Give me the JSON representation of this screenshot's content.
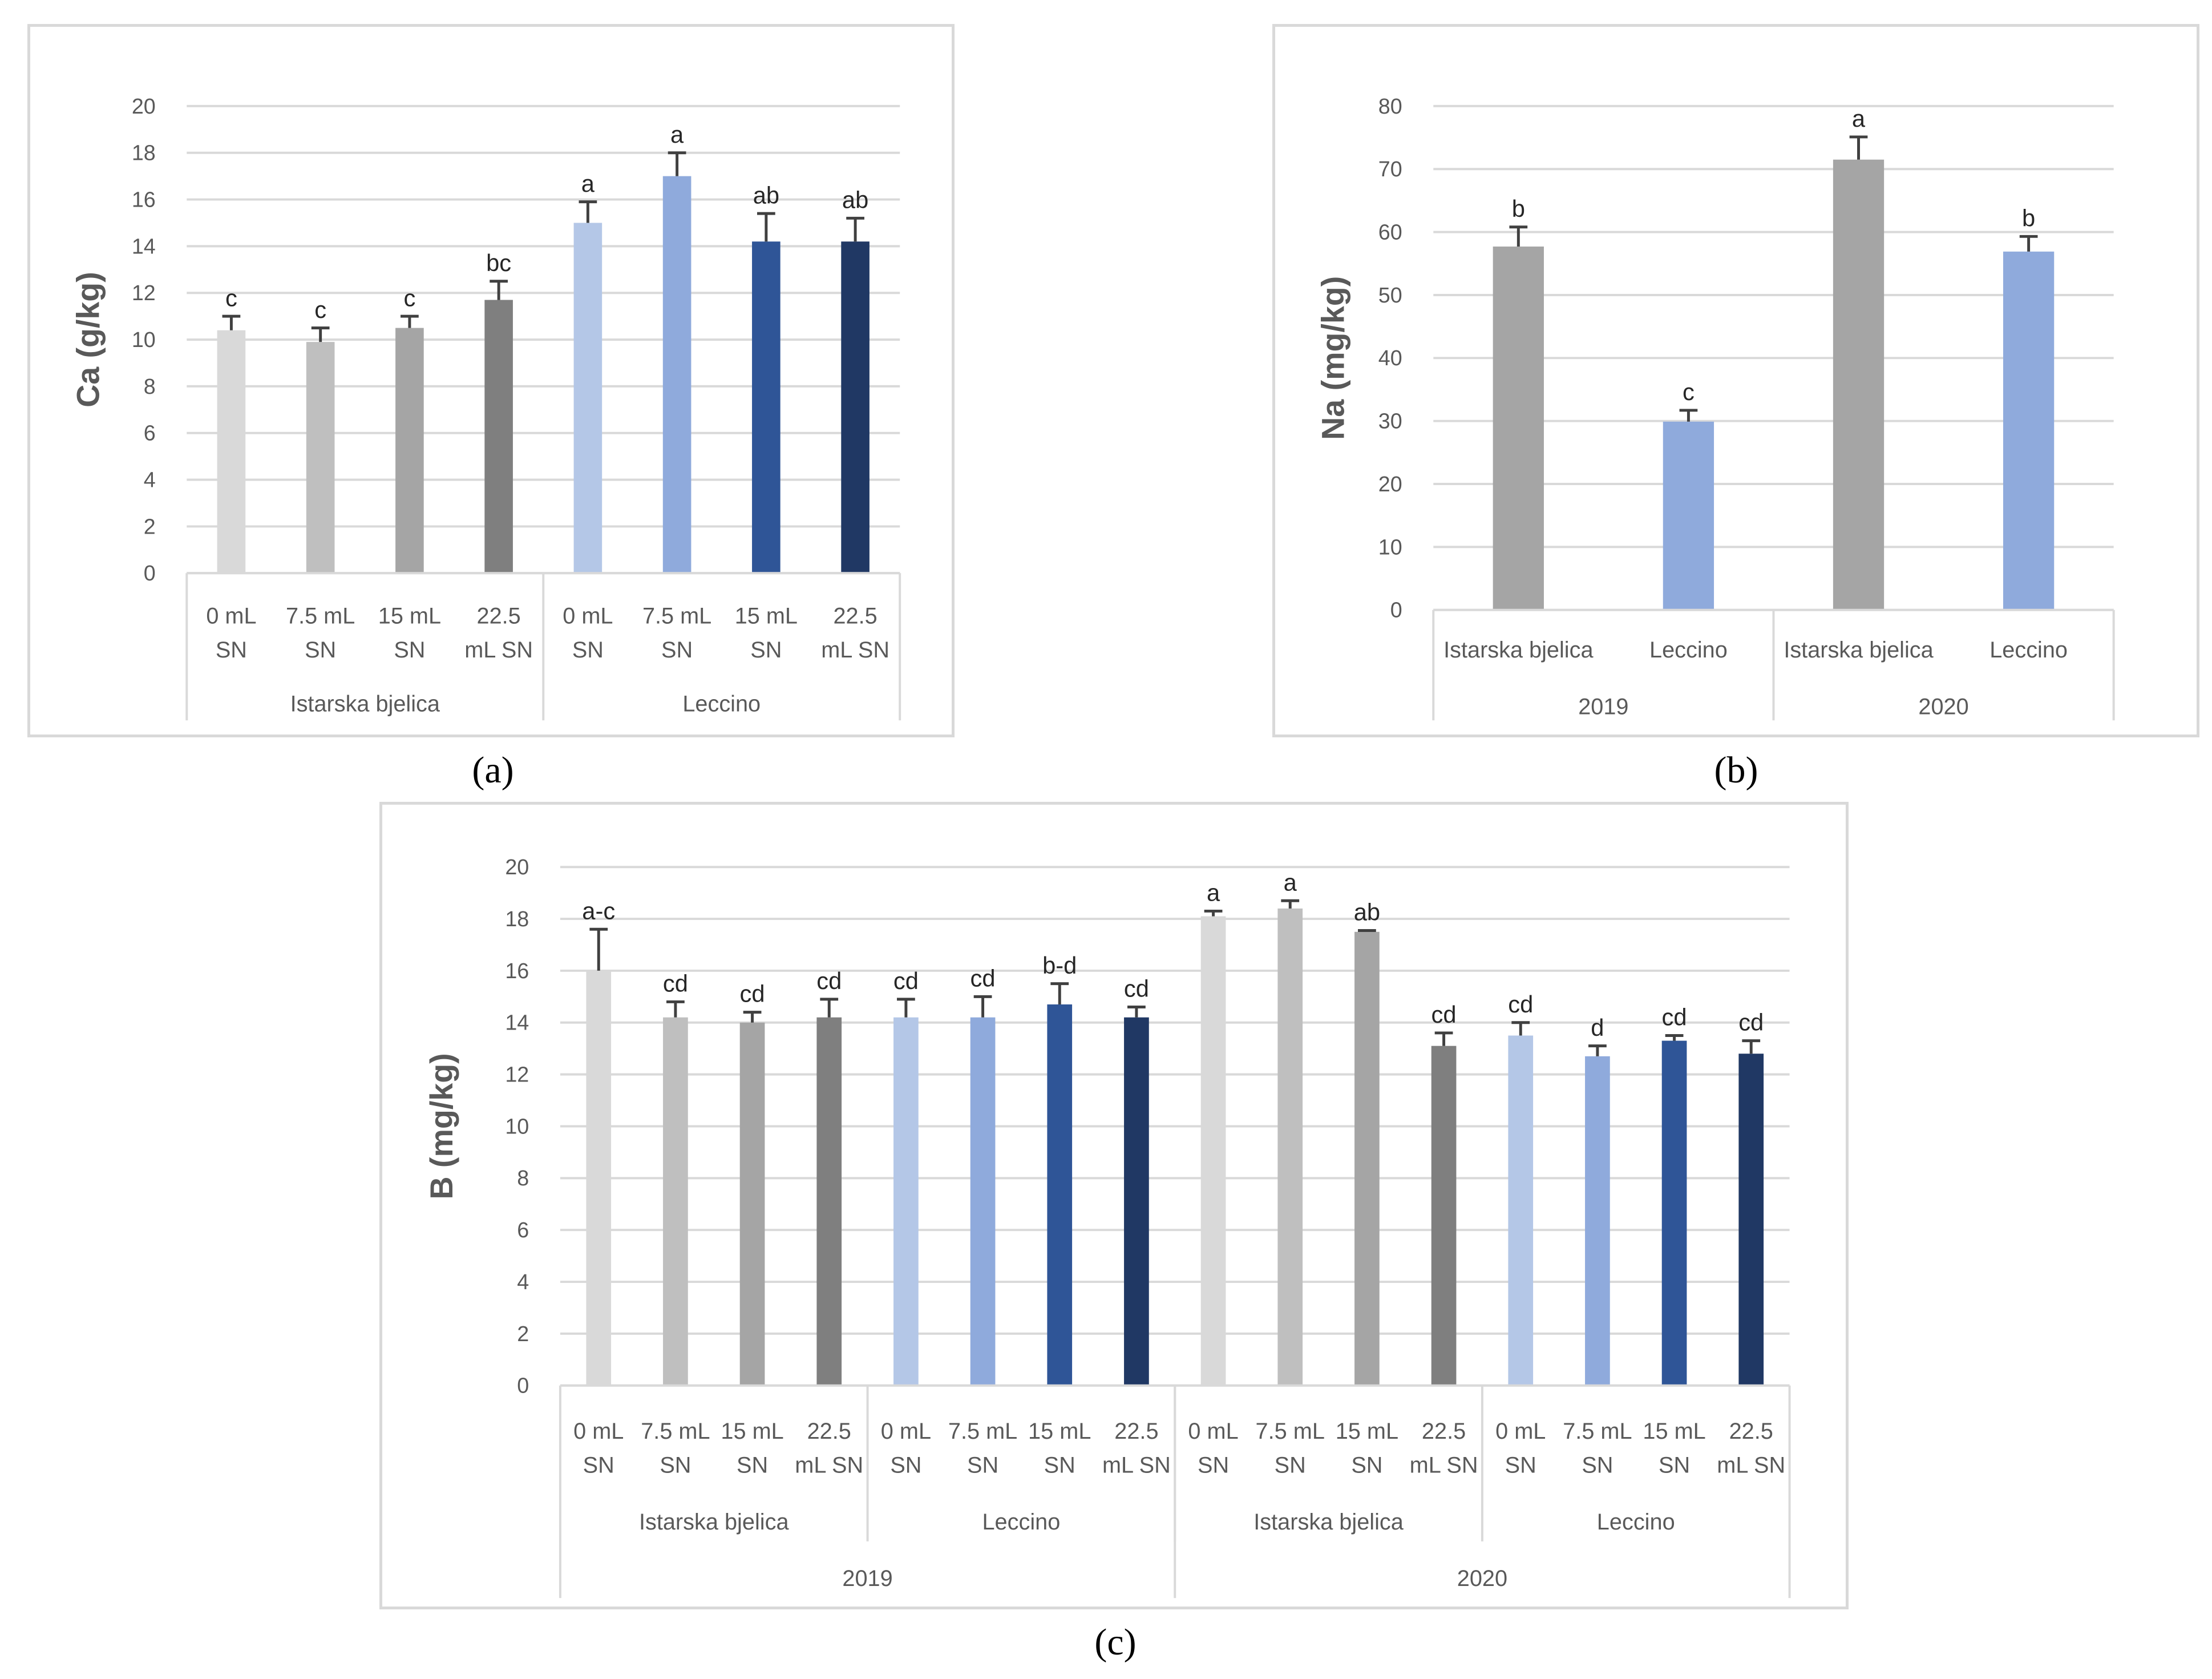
{
  "panels": {
    "a": "(a)",
    "b": "(b)",
    "c": "(c)"
  },
  "colors": {
    "ib_0": "#d9d9d9",
    "ib_7_5": "#bfbfbf",
    "ib_15": "#a5a5a5",
    "ib_22_5": "#7f7f7f",
    "lec_0": "#b4c7e7",
    "lec_7_5": "#8faadc",
    "lec_15": "#2f5597",
    "lec_22_5": "#203864",
    "gray_single": "#a5a5a5",
    "blue_single": "#8faadc",
    "grid": "#d9d9d9",
    "text": "#595959",
    "errorbar": "#404040"
  },
  "chart_data": [
    {
      "id": "a",
      "type": "bar",
      "ylabel": "Ca (g/kg)",
      "ylim": [
        0,
        20
      ],
      "yticks": [
        0,
        2,
        4,
        6,
        8,
        10,
        12,
        14,
        16,
        18,
        20
      ],
      "categories": [
        [
          "0 mL",
          "SN"
        ],
        [
          "7.5 mL",
          "SN"
        ],
        [
          "15 mL",
          "SN"
        ],
        [
          "22.5",
          "mL SN"
        ],
        [
          "0 mL",
          "SN"
        ],
        [
          "7.5 mL",
          "SN"
        ],
        [
          "15 mL",
          "SN"
        ],
        [
          "22.5",
          "mL SN"
        ]
      ],
      "groups": [
        {
          "label": "Istarska bjelica",
          "span": 4
        },
        {
          "label": "Leccino",
          "span": 4
        }
      ],
      "values": [
        10.4,
        9.9,
        10.5,
        11.7,
        15.0,
        17.0,
        14.2,
        14.2
      ],
      "errors": [
        0.6,
        0.6,
        0.5,
        0.8,
        0.9,
        1.0,
        1.2,
        1.0
      ],
      "letters": [
        "c",
        "c",
        "c",
        "bc",
        "a",
        "a",
        "ab",
        "ab"
      ],
      "bar_colors": [
        "ib_0",
        "ib_7_5",
        "ib_15",
        "ib_22_5",
        "lec_0",
        "lec_7_5",
        "lec_15",
        "lec_22_5"
      ]
    },
    {
      "id": "b",
      "type": "bar",
      "ylabel": "Na (mg/kg)",
      "ylim": [
        0,
        80
      ],
      "yticks": [
        0,
        10,
        20,
        30,
        40,
        50,
        60,
        70,
        80
      ],
      "categories": [
        [
          "Istarska bjelica"
        ],
        [
          "Leccino"
        ],
        [
          "Istarska bjelica"
        ],
        [
          "Leccino"
        ]
      ],
      "groups": [
        {
          "label": "2019",
          "span": 2
        },
        {
          "label": "2020",
          "span": 2
        }
      ],
      "values": [
        57.7,
        29.9,
        71.5,
        56.9
      ],
      "errors": [
        3.1,
        1.8,
        3.6,
        2.4
      ],
      "letters": [
        "b",
        "c",
        "a",
        "b"
      ],
      "bar_colors": [
        "gray_single",
        "blue_single",
        "gray_single",
        "blue_single"
      ]
    },
    {
      "id": "c",
      "type": "bar",
      "ylabel": "B (mg/kg)",
      "ylim": [
        0,
        20
      ],
      "yticks": [
        0,
        2,
        4,
        6,
        8,
        10,
        12,
        14,
        16,
        18,
        20
      ],
      "categories": [
        [
          "0 mL",
          "SN"
        ],
        [
          "7.5 mL",
          "SN"
        ],
        [
          "15 mL",
          "SN"
        ],
        [
          "22.5",
          "mL SN"
        ],
        [
          "0 mL",
          "SN"
        ],
        [
          "7.5 mL",
          "SN"
        ],
        [
          "15 mL",
          "SN"
        ],
        [
          "22.5",
          "mL SN"
        ],
        [
          "0 mL",
          "SN"
        ],
        [
          "7.5 mL",
          "SN"
        ],
        [
          "15 mL",
          "SN"
        ],
        [
          "22.5",
          "mL SN"
        ],
        [
          "0 mL",
          "SN"
        ],
        [
          "7.5 mL",
          "SN"
        ],
        [
          "15 mL",
          "SN"
        ],
        [
          "22.5",
          "mL SN"
        ]
      ],
      "groups": [
        {
          "label": "Istarska bjelica",
          "span": 4
        },
        {
          "label": "Leccino",
          "span": 4
        },
        {
          "label": "Istarska bjelica",
          "span": 4
        },
        {
          "label": "Leccino",
          "span": 4
        }
      ],
      "supergroups": [
        {
          "label": "2019",
          "span": 8
        },
        {
          "label": "2020",
          "span": 8
        }
      ],
      "values": [
        16.0,
        14.2,
        14.0,
        14.2,
        14.2,
        14.2,
        14.7,
        14.2,
        18.1,
        18.4,
        17.5,
        13.1,
        13.5,
        12.7,
        13.3,
        12.8
      ],
      "errors": [
        1.6,
        0.6,
        0.4,
        0.7,
        0.7,
        0.8,
        0.8,
        0.4,
        0.2,
        0.3,
        0.05,
        0.5,
        0.5,
        0.4,
        0.2,
        0.5
      ],
      "letters": [
        "a-c",
        "cd",
        "cd",
        "cd",
        "cd",
        "cd",
        "b-d",
        "cd",
        "a",
        "a",
        "ab",
        "cd",
        "cd",
        "d",
        "cd",
        "cd"
      ],
      "bar_colors": [
        "ib_0",
        "ib_7_5",
        "ib_15",
        "ib_22_5",
        "lec_0",
        "lec_7_5",
        "lec_15",
        "lec_22_5",
        "ib_0",
        "ib_7_5",
        "ib_15",
        "ib_22_5",
        "lec_0",
        "lec_7_5",
        "lec_15",
        "lec_22_5"
      ]
    }
  ]
}
